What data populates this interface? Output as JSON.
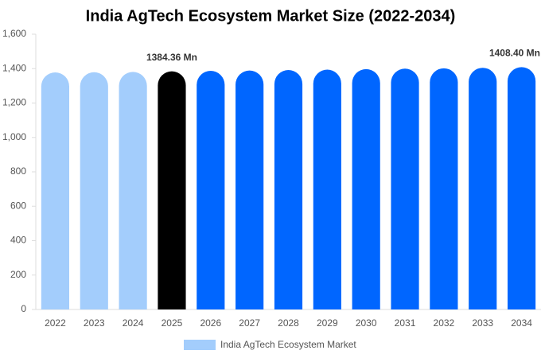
{
  "chart_data": {
    "type": "bar",
    "title": "India AgTech Ecosystem Market Size (2022-2034)",
    "categories": [
      "2022",
      "2023",
      "2024",
      "2025",
      "2026",
      "2027",
      "2028",
      "2029",
      "2030",
      "2031",
      "2032",
      "2033",
      "2034"
    ],
    "series": [
      {
        "name": "India AgTech Ecosystem Market",
        "color": "#a3cdfc",
        "values": [
          1378,
          1379,
          1381,
          1384.36,
          1387,
          1389,
          1392,
          1394,
          1397,
          1400,
          1402,
          1405,
          1408.4
        ],
        "value_labels": [
          null,
          null,
          null,
          "1384.36 Mn",
          null,
          null,
          null,
          null,
          null,
          null,
          null,
          null,
          "1408.40 Mn"
        ],
        "colors": [
          "#a3cdfc",
          "#a3cdfc",
          "#a3cdfc",
          "#000000",
          "#0066ff",
          "#0066ff",
          "#0066ff",
          "#0066ff",
          "#0066ff",
          "#0066ff",
          "#0066ff",
          "#0066ff",
          "#0066ff"
        ]
      }
    ],
    "ylim": [
      0,
      1600
    ],
    "yticks": [
      0,
      200,
      400,
      600,
      800,
      {
        "value": 1000,
        "label": "1,000"
      },
      {
        "value": 1200,
        "label": "1,200"
      },
      {
        "value": 1400,
        "label": "1,400"
      },
      {
        "value": 1600,
        "label": "1,600"
      }
    ],
    "grid": false
  }
}
